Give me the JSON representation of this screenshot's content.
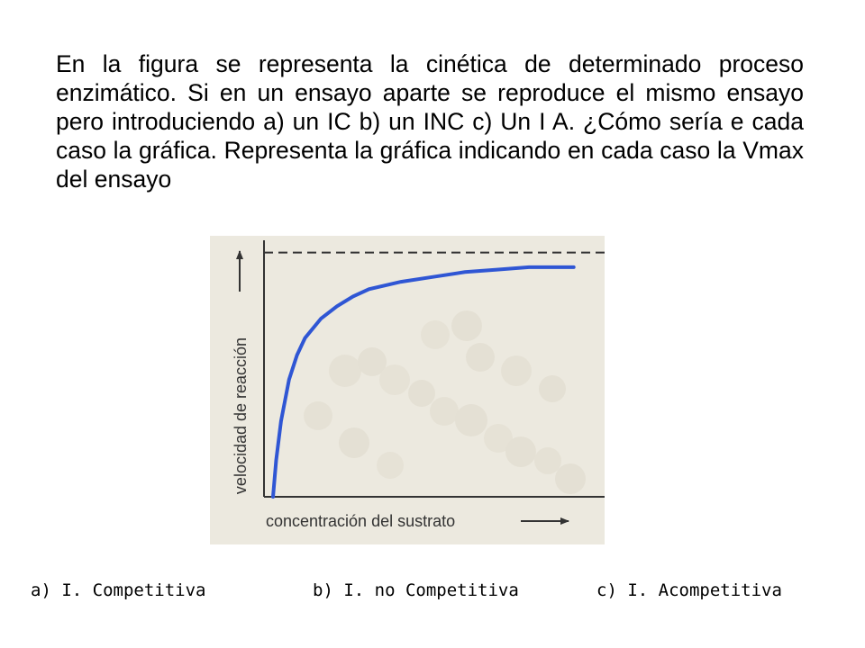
{
  "question_text": "En la figura se representa la cinética de determinado proceso enzimático. Si en un ensayo aparte se reproduce el mismo ensayo pero introduciendo a) un IC  b) un INC c) Un I A. ¿Cómo sería e cada caso la gráfica. Representa la gráfica indicando en cada caso la Vmax del ensayo",
  "options": [
    "a) I. Competitiva",
    "b) I. no Competitiva",
    "c) I. Acompetitiva"
  ],
  "colors": {
    "panel_background": "#ece9df",
    "curve": "#2f56d4",
    "axes": "#333333",
    "asymptote": "#333333"
  },
  "chart_data": {
    "type": "line",
    "xlabel": "concentración del sustrato",
    "ylabel": "velocidad de reacción",
    "xlim": [
      0,
      10
    ],
    "ylim": [
      0,
      1.05
    ],
    "vmax": 1.0,
    "km": 0.55,
    "series": [
      {
        "x": [
          0,
          0.1,
          0.25,
          0.5,
          0.75,
          1,
          1.5,
          2,
          2.5,
          3,
          4,
          5,
          6,
          7,
          8,
          9,
          9.4
        ],
        "y": [
          0,
          0.15,
          0.31,
          0.48,
          0.58,
          0.65,
          0.73,
          0.78,
          0.82,
          0.85,
          0.88,
          0.9,
          0.92,
          0.93,
          0.94,
          0.94,
          0.94
        ]
      }
    ],
    "asymptote": {
      "y": 1.0,
      "style": "dashed"
    },
    "grid": false
  }
}
